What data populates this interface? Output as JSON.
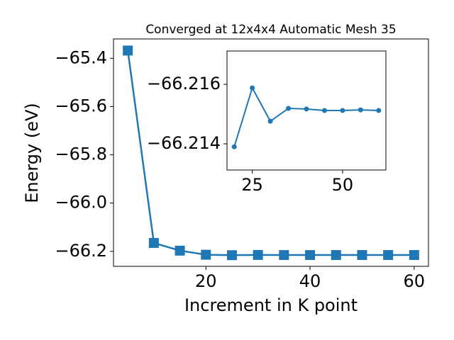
{
  "chart_data": [
    {
      "type": "line",
      "title": "Converged at 12x4x4 Automatic Mesh 35",
      "x_label": "Increment in K point",
      "y_label": "Energy (eV)",
      "x": [
        5,
        10,
        15,
        20,
        25,
        30,
        35,
        40,
        45,
        50,
        55,
        60
      ],
      "series": [
        {
          "color": "#1f77b4",
          "marker": "square",
          "values": [
            -65.368,
            -66.165,
            -66.197,
            -66.2139,
            -66.21588,
            -66.21476,
            -66.21519,
            -66.21517,
            -66.21512,
            -66.21512,
            -66.21514,
            -66.21512
          ]
        }
      ],
      "xlim": [
        2.25,
        62.75
      ],
      "ylim": [
        -66.262,
        -65.32
      ],
      "xticks": [
        20,
        40,
        60
      ],
      "yticks": [
        {
          "value": -66.2,
          "label": "−66.2"
        },
        {
          "value": -66.0,
          "label": "−66.0"
        },
        {
          "value": -65.8,
          "label": "−65.8"
        },
        {
          "value": -65.6,
          "label": "−65.6"
        },
        {
          "value": -65.4,
          "label": "−65.4"
        }
      ]
    },
    {
      "type": "line",
      "x": [
        20,
        25,
        30,
        35,
        40,
        45,
        50,
        55,
        60
      ],
      "series": [
        {
          "color": "#1f77b4",
          "marker": "circle",
          "values": [
            -66.2139,
            -66.21588,
            -66.21476,
            -66.21519,
            -66.21517,
            -66.21512,
            -66.21512,
            -66.21514,
            -66.21512
          ]
        }
      ],
      "xlim": [
        18,
        62
      ],
      "ylim": [
        -66.21312,
        -66.21712
      ],
      "xticks": [
        25,
        50
      ],
      "yticks": [
        {
          "value": -66.214,
          "label": "−66.214"
        },
        {
          "value": -66.216,
          "label": "−66.216"
        }
      ]
    }
  ]
}
